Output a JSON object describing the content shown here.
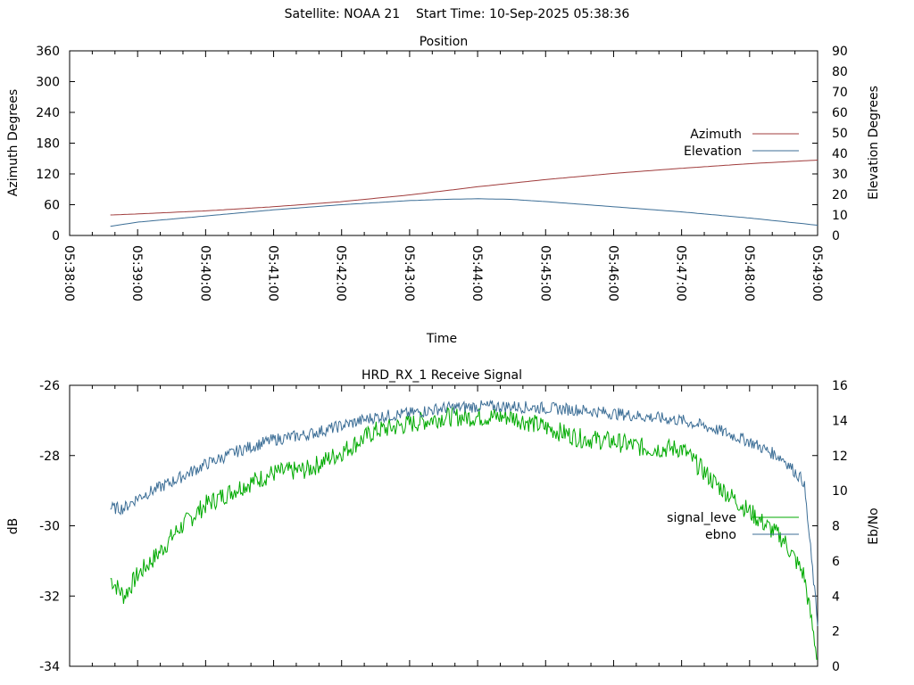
{
  "page": {
    "title": "Satellite: NOAA 21    Start Time: 10-Sep-2025 05:38:36"
  },
  "chart_data": [
    {
      "type": "line",
      "title": "Position",
      "xlabel": "Time",
      "ylabel": "Azimuth Degrees",
      "y2label": "Elevation Degrees",
      "x_ticks": [
        "05:38:00",
        "05:39:00",
        "05:40:00",
        "05:41:00",
        "05:42:00",
        "05:43:00",
        "05:44:00",
        "05:45:00",
        "05:46:00",
        "05:47:00",
        "05:48:00",
        "05:49:00"
      ],
      "ylim": [
        0,
        360
      ],
      "y_ticks": [
        0,
        60,
        120,
        180,
        240,
        300,
        360
      ],
      "y2lim": [
        0,
        90
      ],
      "y2_ticks": [
        0,
        10,
        20,
        30,
        40,
        50,
        60,
        70,
        80,
        90
      ],
      "grid": false,
      "legend": "right",
      "series": [
        {
          "name": "Azimuth",
          "axis": "y",
          "color": "#a03c3c",
          "x_min": [
            38.6,
            39,
            40,
            41,
            42,
            43,
            44,
            45,
            46,
            47,
            48,
            49
          ],
          "values": [
            40,
            42,
            48,
            56,
            66,
            79,
            95,
            109,
            121,
            131,
            140,
            147
          ]
        },
        {
          "name": "Elevation",
          "axis": "y2",
          "color": "#3c6e96",
          "x_min": [
            38.6,
            39,
            40,
            41,
            42,
            43,
            43.5,
            44,
            44.5,
            45,
            46,
            47,
            48,
            49
          ],
          "values": [
            4.5,
            6.5,
            9.5,
            12.5,
            15,
            17,
            17.6,
            17.9,
            17.6,
            16.5,
            14,
            11.5,
            8.5,
            5
          ]
        }
      ]
    },
    {
      "type": "line",
      "title": "HRD_RX_1 Receive Signal",
      "ylabel": "dB",
      "y2label": "Eb/No",
      "ylim": [
        -34,
        -26
      ],
      "y_ticks": [
        -26,
        -28,
        -30,
        -32,
        -34
      ],
      "y2lim": [
        0,
        16
      ],
      "y2_ticks": [
        0,
        2,
        4,
        6,
        8,
        10,
        12,
        14,
        16
      ],
      "grid": false,
      "legend": "right",
      "series": [
        {
          "name": "signal_leve",
          "axis": "y",
          "color": "#00aa00",
          "x_min": [
            38.6,
            38.8,
            39.0,
            39.3,
            39.6,
            40.0,
            40.5,
            41.0,
            41.5,
            42.0,
            42.5,
            43.0,
            43.5,
            44.0,
            44.5,
            45.0,
            45.5,
            46.0,
            46.5,
            47.0,
            47.5,
            48.0,
            48.5,
            48.8,
            49.0
          ],
          "values": [
            -31.5,
            -32.0,
            -31.4,
            -30.8,
            -30.1,
            -29.4,
            -28.9,
            -28.5,
            -28.4,
            -27.9,
            -27.3,
            -27.1,
            -26.9,
            -26.9,
            -26.9,
            -27.2,
            -27.5,
            -27.6,
            -27.8,
            -27.8,
            -28.8,
            -29.6,
            -30.4,
            -31.4,
            -33.8
          ]
        },
        {
          "name": "ebno",
          "axis": "y2",
          "color": "#3c6e96",
          "x_min": [
            38.6,
            38.8,
            39.0,
            39.5,
            40.0,
            40.5,
            41.0,
            41.5,
            42.0,
            42.5,
            43.0,
            43.5,
            44.0,
            44.5,
            45.0,
            45.5,
            46.0,
            46.5,
            47.0,
            47.5,
            48.0,
            48.5,
            48.8,
            49.0
          ],
          "values": [
            9.0,
            9.0,
            9.6,
            10.5,
            11.5,
            12.3,
            12.9,
            13.2,
            13.7,
            14.2,
            14.4,
            14.7,
            14.8,
            14.8,
            14.7,
            14.6,
            14.4,
            14.2,
            14.0,
            13.5,
            12.8,
            11.8,
            10.5,
            2.5
          ]
        }
      ]
    }
  ]
}
